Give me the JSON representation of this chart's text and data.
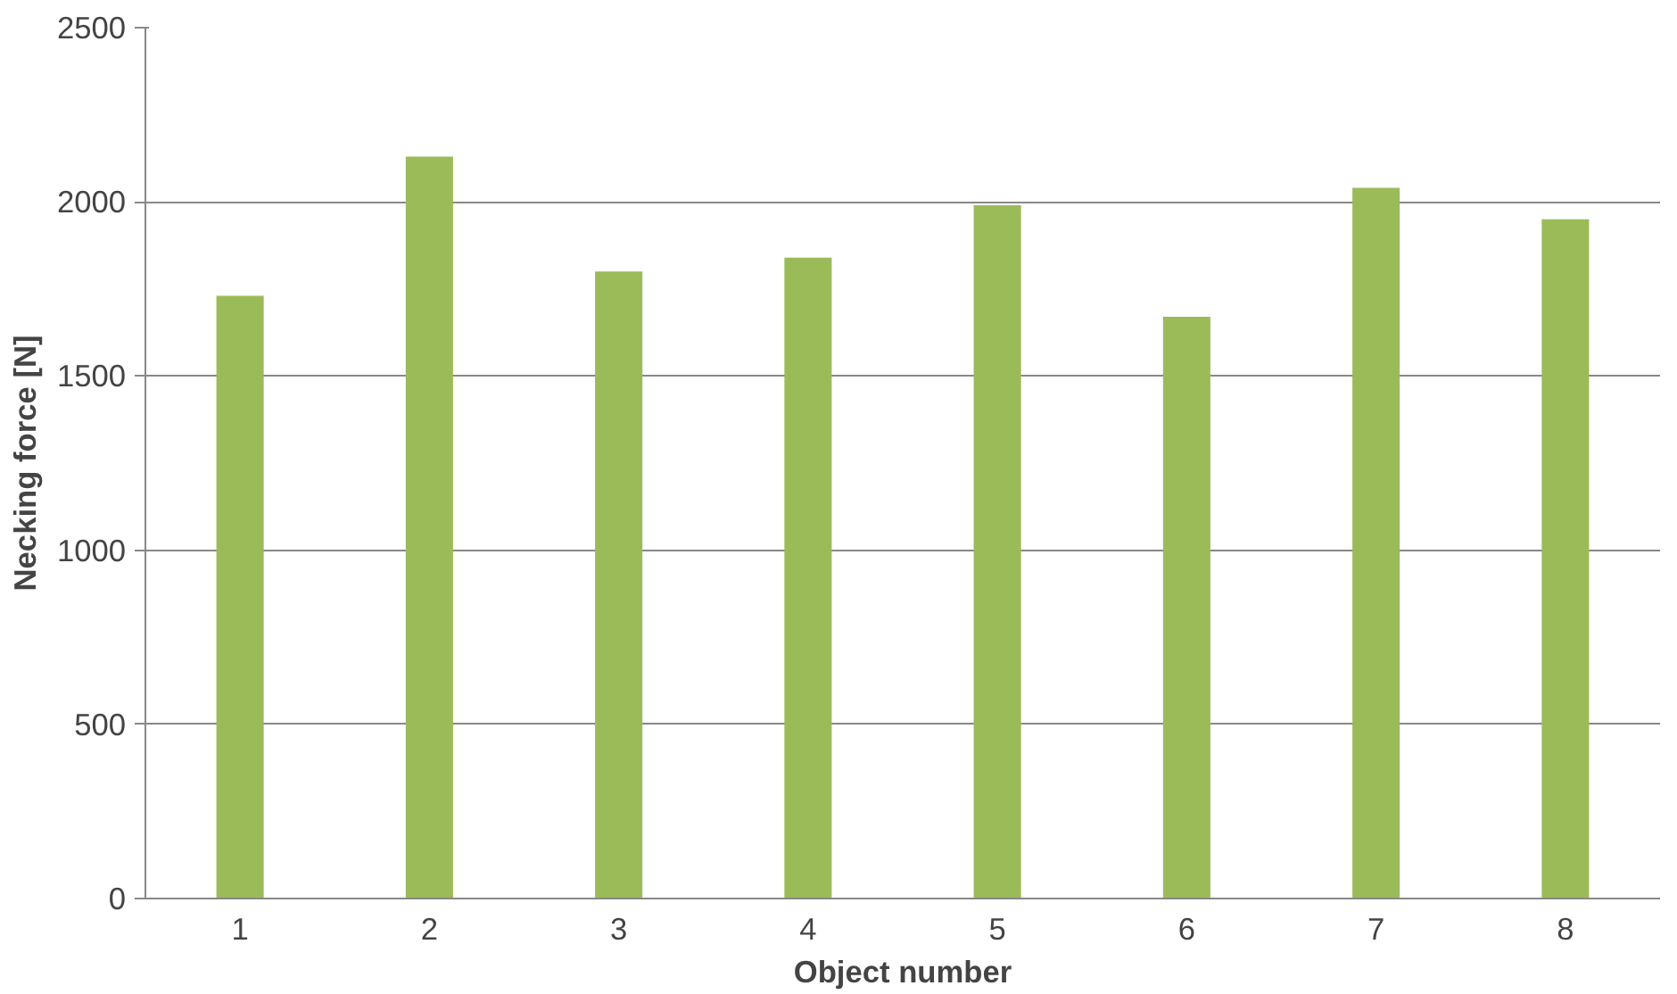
{
  "chart_data": {
    "type": "bar",
    "xlabel": "Object number",
    "ylabel": "Necking force [N]",
    "categories": [
      "1",
      "2",
      "3",
      "4",
      "5",
      "6",
      "7",
      "8"
    ],
    "values": [
      1730,
      2130,
      1800,
      1840,
      1990,
      1670,
      2040,
      1950
    ],
    "color": "#9bbb59",
    "ylim": [
      0,
      2500
    ],
    "yticks": [
      0,
      500,
      1000,
      1500,
      2000,
      2500
    ],
    "grid": "y"
  }
}
